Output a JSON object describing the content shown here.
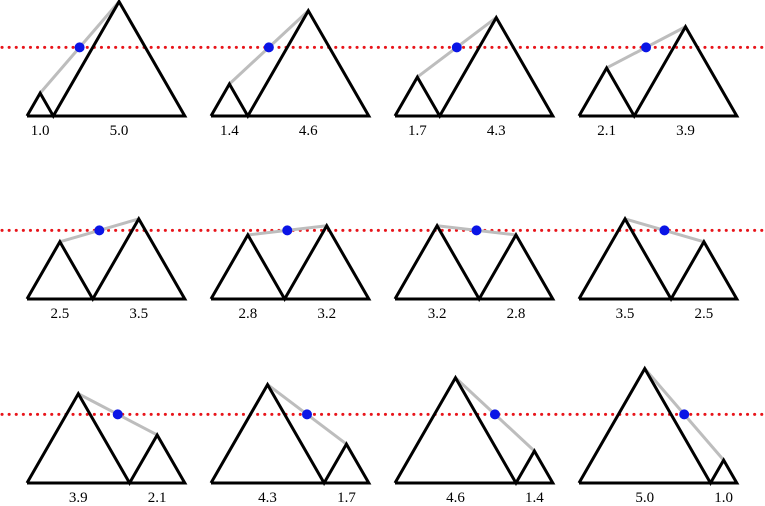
{
  "panels": [
    {
      "left": "1.0",
      "right": "5.0"
    },
    {
      "left": "1.4",
      "right": "4.6"
    },
    {
      "left": "1.7",
      "right": "4.3"
    },
    {
      "left": "2.1",
      "right": "3.9"
    },
    {
      "left": "2.5",
      "right": "3.5"
    },
    {
      "left": "2.8",
      "right": "3.2"
    },
    {
      "left": "3.2",
      "right": "2.8"
    },
    {
      "left": "3.5",
      "right": "2.5"
    },
    {
      "left": "3.9",
      "right": "2.1"
    },
    {
      "left": "4.3",
      "right": "1.7"
    },
    {
      "left": "4.6",
      "right": "1.4"
    },
    {
      "left": "5.0",
      "right": "1.0"
    }
  ]
}
